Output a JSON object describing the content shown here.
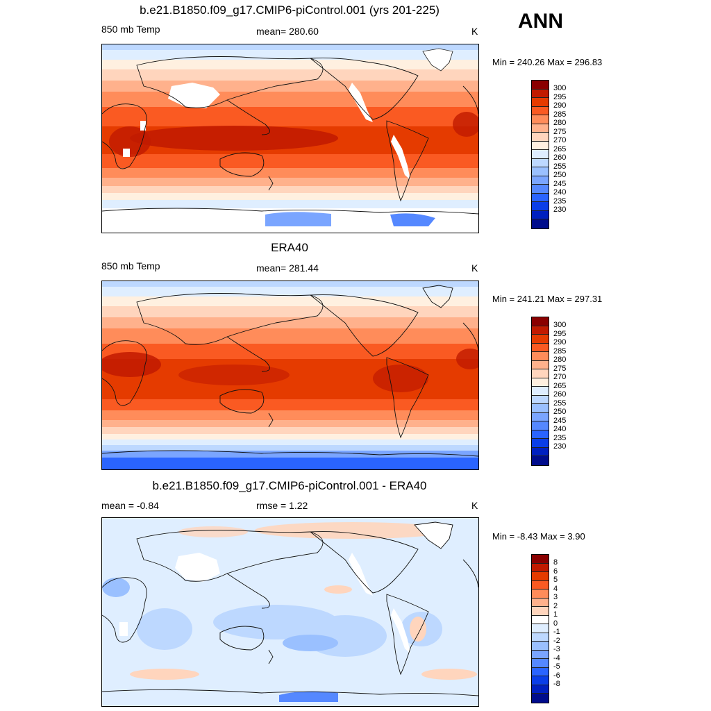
{
  "season": "ANN",
  "palette": {
    "temp": [
      "#8a0000",
      "#c11a00",
      "#e53b00",
      "#fa5a22",
      "#ff8c5a",
      "#ffb18c",
      "#ffd5bd",
      "#fff0e0",
      "#dfeeff",
      "#bdd8ff",
      "#9ac0ff",
      "#7aa5ff",
      "#5588ff",
      "#2a64ff",
      "#0a3ee8",
      "#0020c0",
      "#000c8c"
    ],
    "diff": [
      "#8a0000",
      "#c11a00",
      "#e53b00",
      "#fa5a22",
      "#ff8c5a",
      "#ffb18c",
      "#ffd5bd",
      "#ffffff",
      "#dfeeff",
      "#bdd8ff",
      "#9ac0ff",
      "#7aa5ff",
      "#5588ff",
      "#2a64ff",
      "#0a3ee8",
      "#0020c0",
      "#000c8c"
    ]
  },
  "panels": [
    {
      "title": "b.e21.B1850.f09_g17.CMIP6-piControl.001 (yrs 201-225)",
      "left_label": "850 mb Temp",
      "center_label": "mean= 280.60",
      "units": "K",
      "minmax": "Min = 240.26 Max = 296.83",
      "ticks": [
        "300",
        "295",
        "290",
        "285",
        "280",
        "275",
        "270",
        "265",
        "260",
        "255",
        "250",
        "245",
        "240",
        "235",
        "230"
      ]
    },
    {
      "title": "ERA40",
      "left_label": "850 mb Temp",
      "center_label": "mean= 281.44",
      "units": "K",
      "minmax": "Min = 241.21 Max = 297.31",
      "ticks": [
        "300",
        "295",
        "290",
        "285",
        "280",
        "275",
        "270",
        "265",
        "260",
        "255",
        "250",
        "245",
        "240",
        "235",
        "230"
      ]
    },
    {
      "title": "b.e21.B1850.f09_g17.CMIP6-piControl.001 - ERA40",
      "left_label": "mean =  -0.84",
      "center_label": "rmse =   1.22",
      "units": "K",
      "minmax": "Min =  -8.43 Max =   3.90",
      "ticks": [
        "8",
        "6",
        "5",
        "4",
        "3",
        "2",
        "1",
        "0",
        "-1",
        "-2",
        "-3",
        "-4",
        "-5",
        "-6",
        "-8"
      ]
    }
  ]
}
